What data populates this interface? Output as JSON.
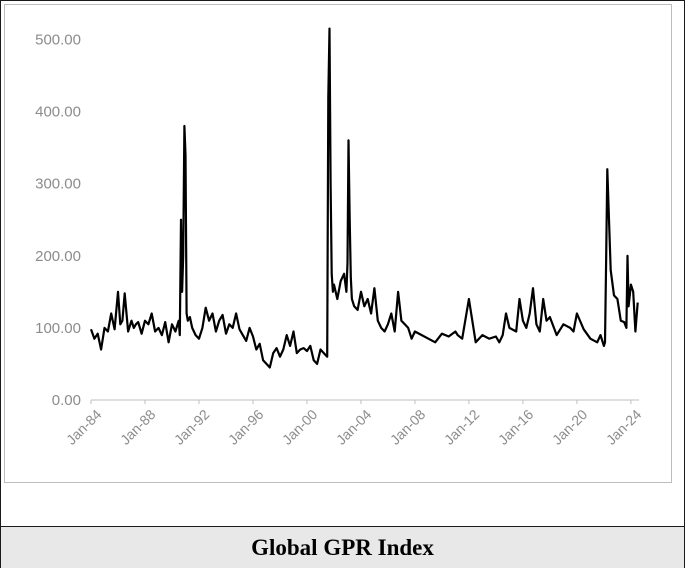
{
  "caption": "Global GPR Index",
  "colors": {
    "line": "#000000",
    "tick_text": "#8c8c8c",
    "axis": "#bfbfbf",
    "caption_bg": "#e8e8e8"
  },
  "chart_data": {
    "type": "line",
    "title": "",
    "xlabel": "",
    "ylabel": "",
    "grid": false,
    "legend": "none",
    "ylim": [
      0,
      520
    ],
    "xlim": [
      1984.0,
      2024.6
    ],
    "yticks": [
      0,
      100,
      200,
      300,
      400,
      500
    ],
    "ytick_labels": [
      "0.00",
      "100.00",
      "200.00",
      "300.00",
      "400.00",
      "500.00"
    ],
    "xticks": [
      1984,
      1988,
      1992,
      1996,
      2000,
      2004,
      2008,
      2012,
      2016,
      2020,
      2024
    ],
    "xtick_labels": [
      "Jan-84",
      "Jan-88",
      "Jan-92",
      "Jan-96",
      "Jan-00",
      "Jan-04",
      "Jan-08",
      "Jan-12",
      "Jan-16",
      "Jan-20",
      "Jan-24"
    ],
    "series": [
      {
        "x": [
          1984.0,
          1984.25,
          1984.5,
          1984.75,
          1985.0,
          1985.25,
          1985.5,
          1985.75,
          1986.0,
          1986.17,
          1986.33,
          1986.5,
          1986.75,
          1987.0,
          1987.17,
          1987.33,
          1987.5,
          1987.75,
          1988.0,
          1988.25,
          1988.5,
          1988.75,
          1989.0,
          1989.25,
          1989.5,
          1989.75,
          1990.0,
          1990.25,
          1990.5,
          1990.58,
          1990.67,
          1990.75,
          1990.83,
          1990.92,
          1991.0,
          1991.08,
          1991.17,
          1991.33,
          1991.5,
          1991.75,
          1992.0,
          1992.25,
          1992.5,
          1992.75,
          1993.0,
          1993.25,
          1993.5,
          1993.75,
          1994.0,
          1994.25,
          1994.5,
          1994.75,
          1995.0,
          1995.25,
          1995.5,
          1995.75,
          1996.0,
          1996.25,
          1996.5,
          1996.75,
          1997.0,
          1997.25,
          1997.5,
          1997.75,
          1998.0,
          1998.25,
          1998.5,
          1998.75,
          1999.0,
          1999.25,
          1999.5,
          1999.75,
          2000.0,
          2000.25,
          2000.5,
          2000.75,
          2001.0,
          2001.25,
          2001.5,
          2001.58,
          2001.67,
          2001.75,
          2001.83,
          2001.92,
          2002.0,
          2002.25,
          2002.5,
          2002.75,
          2002.92,
          2003.0,
          2003.08,
          2003.17,
          2003.25,
          2003.33,
          2003.5,
          2003.75,
          2004.0,
          2004.25,
          2004.5,
          2004.75,
          2005.0,
          2005.25,
          2005.5,
          2005.75,
          2006.0,
          2006.25,
          2006.5,
          2006.75,
          2007.0,
          2007.25,
          2007.5,
          2007.75,
          2008.0,
          2008.5,
          2009.0,
          2009.5,
          2010.0,
          2010.5,
          2011.0,
          2011.17,
          2011.5,
          2012.0,
          2012.5,
          2013.0,
          2013.5,
          2014.0,
          2014.25,
          2014.5,
          2014.75,
          2015.0,
          2015.5,
          2015.75,
          2016.0,
          2016.25,
          2016.5,
          2016.75,
          2017.0,
          2017.25,
          2017.5,
          2017.75,
          2018.0,
          2018.5,
          2019.0,
          2019.5,
          2019.75,
          2020.0,
          2020.5,
          2021.0,
          2021.5,
          2021.75,
          2022.0,
          2022.08,
          2022.17,
          2022.25,
          2022.5,
          2022.75,
          2023.0,
          2023.25,
          2023.5,
          2023.67,
          2023.75,
          2023.83,
          2024.0,
          2024.17,
          2024.33,
          2024.5
        ],
        "values": [
          98,
          85,
          92,
          70,
          100,
          95,
          120,
          98,
          150,
          105,
          110,
          148,
          95,
          110,
          100,
          105,
          108,
          92,
          110,
          105,
          120,
          95,
          100,
          90,
          108,
          80,
          105,
          95,
          110,
          90,
          250,
          150,
          200,
          380,
          340,
          120,
          110,
          115,
          100,
          90,
          85,
          100,
          128,
          110,
          120,
          95,
          110,
          118,
          92,
          105,
          100,
          120,
          98,
          90,
          82,
          100,
          88,
          70,
          78,
          55,
          50,
          45,
          65,
          72,
          60,
          70,
          90,
          75,
          95,
          65,
          70,
          72,
          68,
          75,
          55,
          50,
          70,
          65,
          60,
          420,
          515,
          300,
          175,
          150,
          160,
          140,
          165,
          175,
          150,
          190,
          360,
          250,
          170,
          140,
          130,
          125,
          150,
          130,
          140,
          120,
          155,
          110,
          100,
          95,
          105,
          120,
          95,
          150,
          110,
          105,
          100,
          85,
          95,
          90,
          85,
          80,
          92,
          88,
          95,
          90,
          85,
          140,
          80,
          90,
          85,
          88,
          80,
          90,
          120,
          100,
          95,
          140,
          110,
          100,
          120,
          155,
          105,
          95,
          140,
          110,
          115,
          90,
          105,
          100,
          95,
          120,
          98,
          85,
          80,
          90,
          75,
          80,
          200,
          320,
          180,
          145,
          140,
          110,
          108,
          100,
          200,
          130,
          160,
          150,
          95,
          135
        ]
      }
    ]
  }
}
